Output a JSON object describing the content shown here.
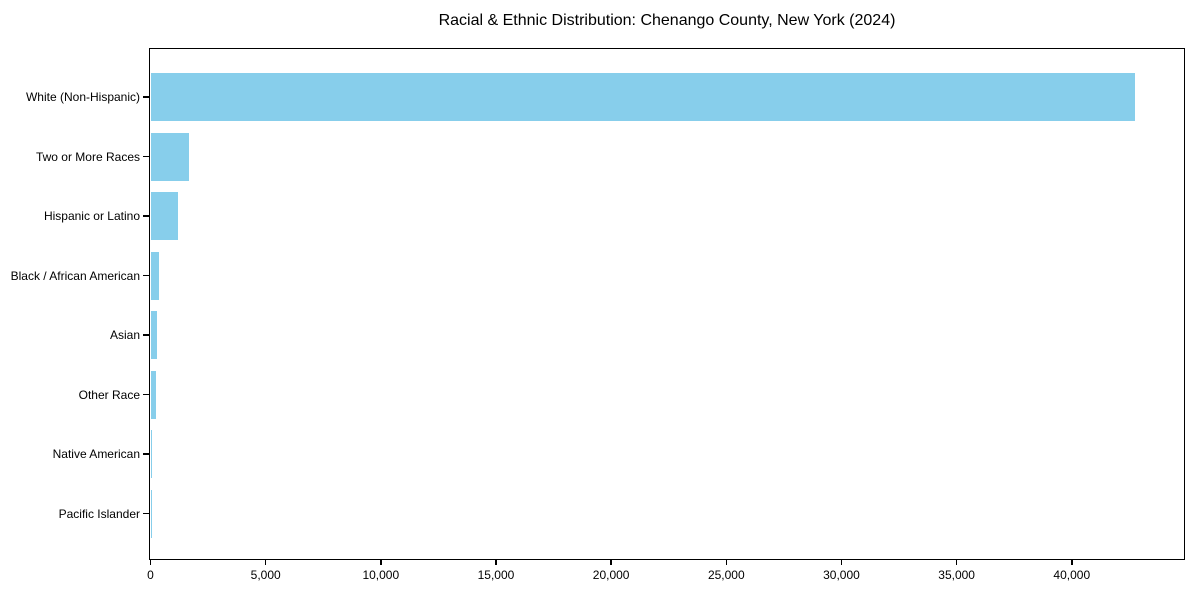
{
  "chart_data": {
    "type": "bar",
    "orientation": "horizontal",
    "title": "Racial & Ethnic Distribution: Chenango County, New York (2024)",
    "categories": [
      "White (Non-Hispanic)",
      "Two or More Races",
      "Hispanic or Latino",
      "Black / African American",
      "Asian",
      "Other Race",
      "Native American",
      "Pacific Islander"
    ],
    "values": [
      42750,
      1650,
      1210,
      350,
      280,
      230,
      50,
      20
    ],
    "bar_color": "#87CEEB",
    "xlabel": "",
    "ylabel": "",
    "xlim": [
      0,
      44850
    ],
    "x_ticks": [
      0,
      5000,
      10000,
      15000,
      20000,
      25000,
      30000,
      35000,
      40000
    ],
    "x_tick_labels": [
      "0",
      "5,000",
      "10,000",
      "15,000",
      "20,000",
      "25,000",
      "30,000",
      "35,000",
      "40,000"
    ],
    "grid": false,
    "legend": null,
    "background_color": "#ffffff",
    "spine_color": "#000000"
  }
}
